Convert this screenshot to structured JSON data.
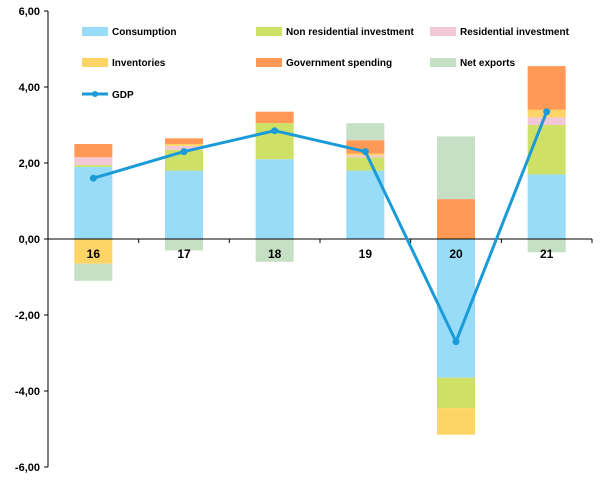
{
  "chart_data": {
    "type": "bar",
    "stacked": true,
    "categories": [
      "16",
      "17",
      "18",
      "19",
      "20",
      "21"
    ],
    "ylim": [
      -6,
      6
    ],
    "yticks": [
      "6,00",
      "4,00",
      "2,00",
      "0,00",
      "-2,00",
      "-4,00",
      "-6,00"
    ],
    "ytick_values": [
      6,
      4,
      2,
      0,
      -2,
      -4,
      -6
    ],
    "legend_position": "top",
    "series": [
      {
        "name": "Consumption",
        "color": "#99dcf8",
        "values": [
          1.9,
          1.8,
          2.1,
          1.8,
          -3.65,
          1.7
        ]
      },
      {
        "name": "Non residential investment",
        "color": "#cfe066",
        "values": [
          0.05,
          0.55,
          0.95,
          0.35,
          -0.8,
          1.3
        ]
      },
      {
        "name": "Residential investment",
        "color": "#f2c8d6",
        "values": [
          0.2,
          0.1,
          0.0,
          0.05,
          0.0,
          0.2
        ]
      },
      {
        "name": "Inventories",
        "color": "#ffd466",
        "values": [
          -0.65,
          0.05,
          0.0,
          0.05,
          -0.7,
          0.2
        ]
      },
      {
        "name": "Government spending",
        "color": "#ff9955",
        "values": [
          0.35,
          0.15,
          0.3,
          0.35,
          1.05,
          1.15
        ]
      },
      {
        "name": "Net exports",
        "color": "#c6e0c6",
        "values": [
          -0.45,
          -0.3,
          -0.6,
          0.45,
          1.65,
          -0.35
        ]
      }
    ],
    "line": {
      "name": "GDP",
      "color": "#1a9bd8",
      "values": [
        1.6,
        2.3,
        2.85,
        2.3,
        -2.7,
        3.35
      ]
    }
  }
}
